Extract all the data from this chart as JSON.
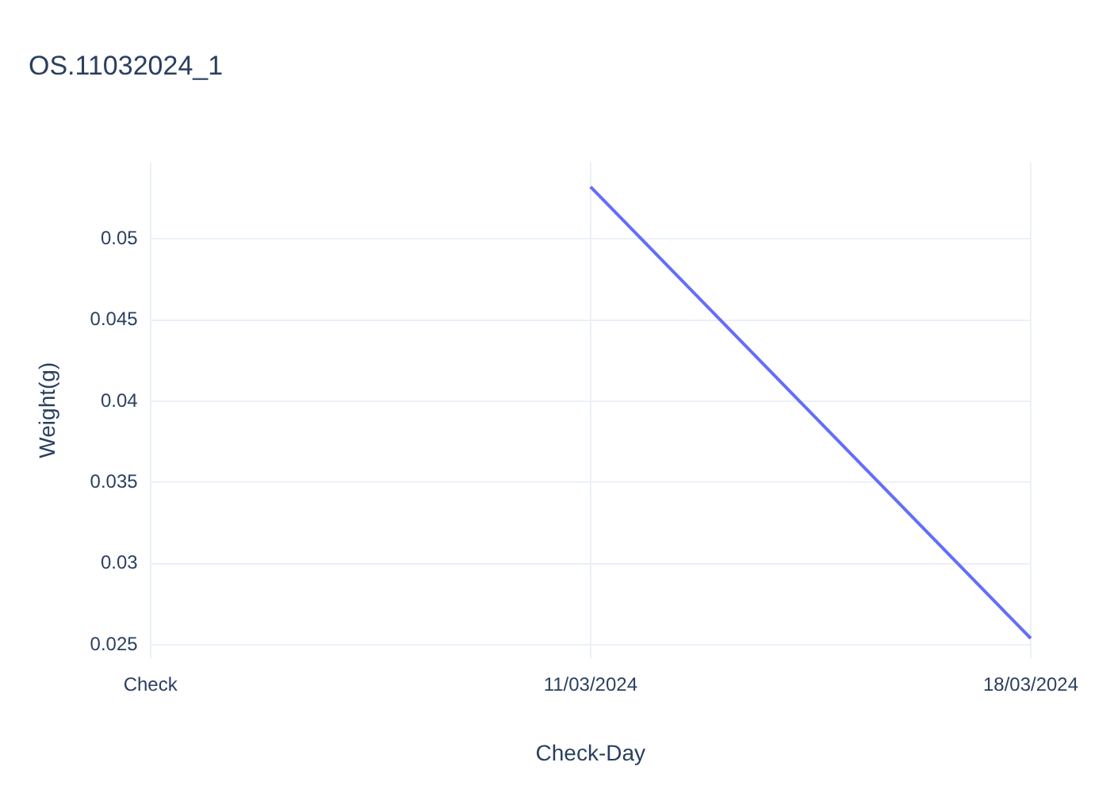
{
  "chart_data": {
    "type": "line",
    "title": "OS.11032024_1",
    "xlabel": "Check-Day",
    "ylabel": "Weight(g)",
    "categories": [
      "Check",
      "11/03/2024",
      "18/03/2024"
    ],
    "series": [
      {
        "color": "#636efa",
        "values": [
          null,
          0.0532,
          0.0254
        ]
      }
    ],
    "ylim": [
      0.0242,
      0.0547
    ],
    "yticks": [
      0.025,
      0.03,
      0.035,
      0.04,
      0.045,
      0.05
    ],
    "grid": true,
    "legend": false,
    "marker": "none",
    "line_style": "solid"
  }
}
